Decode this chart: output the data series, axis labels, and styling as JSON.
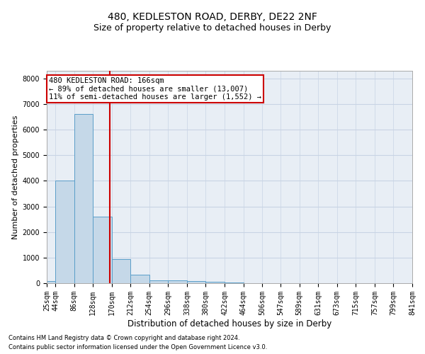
{
  "title1": "480, KEDLESTON ROAD, DERBY, DE22 2NF",
  "title2": "Size of property relative to detached houses in Derby",
  "xlabel": "Distribution of detached houses by size in Derby",
  "ylabel": "Number of detached properties",
  "footer1": "Contains HM Land Registry data © Crown copyright and database right 2024.",
  "footer2": "Contains public sector information licensed under the Open Government Licence v3.0.",
  "bin_edges": [
    25,
    44,
    86,
    128,
    170,
    212,
    254,
    296,
    338,
    380,
    422,
    464,
    506,
    547,
    589,
    631,
    673,
    715,
    757,
    799,
    841
  ],
  "bin_labels": [
    "25sqm",
    "44sqm",
    "86sqm",
    "128sqm",
    "170sqm",
    "212sqm",
    "254sqm",
    "296sqm",
    "338sqm",
    "380sqm",
    "422sqm",
    "464sqm",
    "506sqm",
    "547sqm",
    "589sqm",
    "631sqm",
    "673sqm",
    "715sqm",
    "757sqm",
    "799sqm",
    "841sqm"
  ],
  "bar_heights": [
    70,
    4000,
    6600,
    2600,
    950,
    320,
    120,
    100,
    80,
    60,
    20,
    10,
    5,
    3,
    2,
    1,
    1,
    0,
    0,
    0
  ],
  "bar_color": "#c5d8e8",
  "bar_edge_color": "#5a9ec9",
  "property_line_x": 166,
  "annotation_line1": "480 KEDLESTON ROAD: 166sqm",
  "annotation_line2": "← 89% of detached houses are smaller (13,007)",
  "annotation_line3": "11% of semi-detached houses are larger (1,552) →",
  "annotation_box_color": "#ffffff",
  "annotation_box_edge_color": "#cc0000",
  "line_color": "#cc0000",
  "ylim": [
    0,
    8300
  ],
  "yticks": [
    0,
    1000,
    2000,
    3000,
    4000,
    5000,
    6000,
    7000,
    8000
  ],
  "grid_color": "#c8d4e4",
  "background_color": "#e8eef5",
  "title1_fontsize": 10,
  "title2_fontsize": 9,
  "ylabel_fontsize": 8,
  "xlabel_fontsize": 8.5,
  "tick_fontsize": 7,
  "annotation_fontsize": 7.5,
  "footer_fontsize": 6
}
